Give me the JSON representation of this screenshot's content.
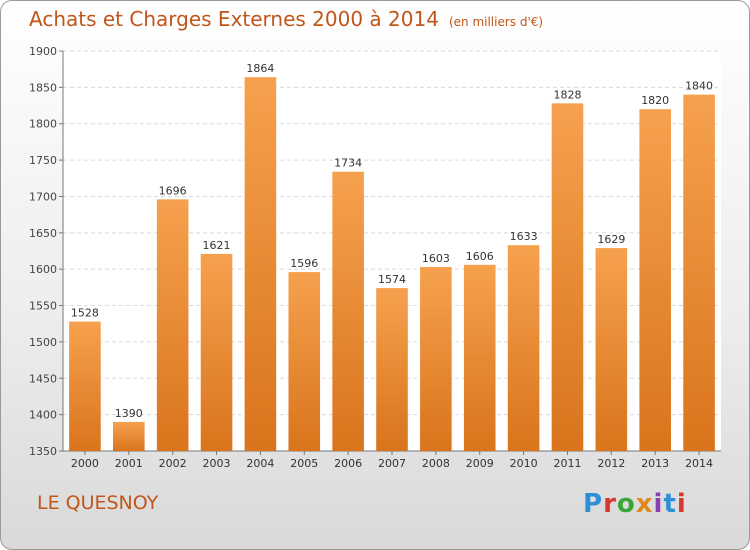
{
  "header": {
    "title": "Achats et Charges Externes 2000 à 2014",
    "subtitle": "(en milliers d'€)"
  },
  "footer": {
    "commune": "LE QUESNOY",
    "logo_letters": [
      "P",
      "r",
      "o",
      "x",
      "i",
      "t",
      "i"
    ]
  },
  "colors": {
    "bar_top": "#f6a14e",
    "bar_bottom": "#d9741c",
    "title": "#c0561a"
  },
  "chart_data": {
    "type": "bar",
    "title": "Achats et Charges Externes 2000 à 2014",
    "subtitle": "(en milliers d'€)",
    "xlabel": "",
    "ylabel": "",
    "categories": [
      "2000",
      "2001",
      "2002",
      "2003",
      "2004",
      "2005",
      "2006",
      "2007",
      "2008",
      "2009",
      "2010",
      "2011",
      "2012",
      "2013",
      "2014"
    ],
    "values": [
      1528,
      1390,
      1696,
      1621,
      1864,
      1596,
      1734,
      1574,
      1603,
      1606,
      1633,
      1828,
      1629,
      1820,
      1840
    ],
    "ylim": [
      1350,
      1900
    ],
    "yticks": [
      1350,
      1400,
      1450,
      1500,
      1550,
      1600,
      1650,
      1700,
      1750,
      1800,
      1850,
      1900
    ],
    "grid": true,
    "legend": "none"
  }
}
